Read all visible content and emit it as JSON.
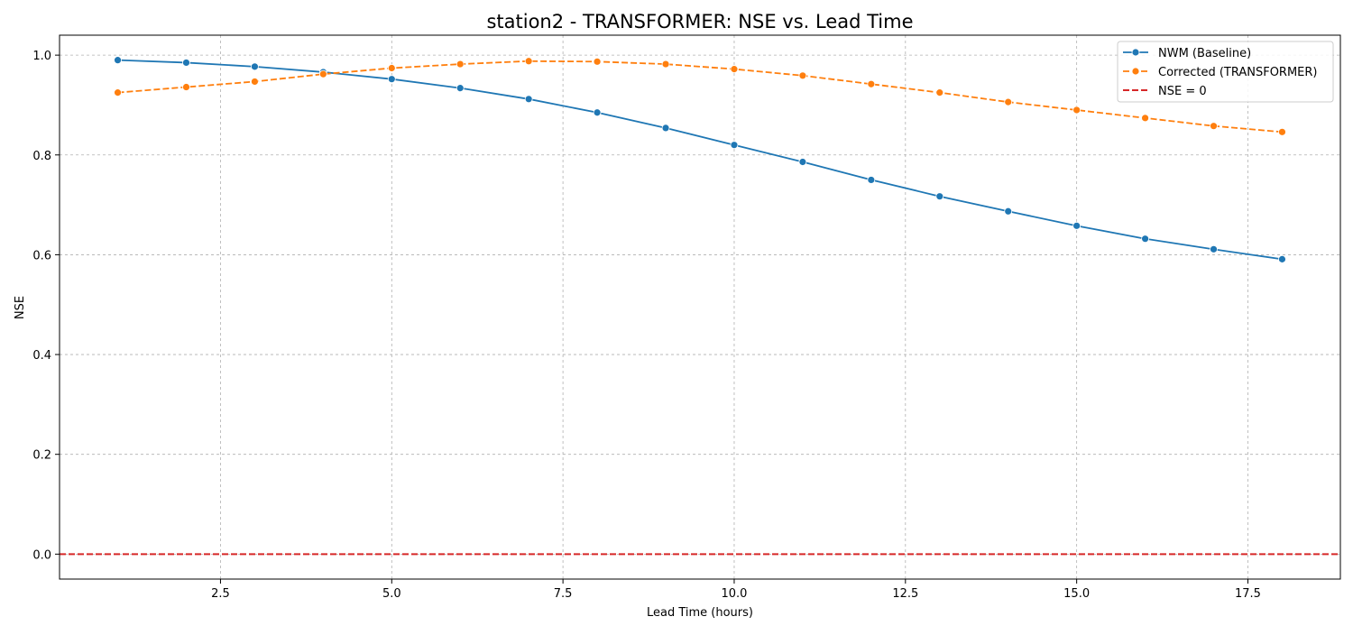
{
  "chart_data": {
    "type": "line",
    "title": "station2 - TRANSFORMER: NSE vs. Lead Time",
    "xlabel": "Lead Time (hours)",
    "ylabel": "NSE",
    "xlim": [
      0.15,
      18.85
    ],
    "ylim": [
      -0.05,
      1.04
    ],
    "x_ticks": [
      2.5,
      5.0,
      7.5,
      10.0,
      12.5,
      15.0,
      17.5
    ],
    "x_tick_labels": [
      "2.5",
      "5.0",
      "7.5",
      "10.0",
      "12.5",
      "15.0",
      "17.5"
    ],
    "y_ticks": [
      0.0,
      0.2,
      0.4,
      0.6,
      0.8,
      1.0
    ],
    "y_tick_labels": [
      "0.0",
      "0.2",
      "0.4",
      "0.6",
      "0.8",
      "1.0"
    ],
    "grid": true,
    "legend_position": "top-right",
    "x": [
      1,
      2,
      3,
      4,
      5,
      6,
      7,
      8,
      9,
      10,
      11,
      12,
      13,
      14,
      15,
      16,
      17,
      18
    ],
    "series": [
      {
        "name": "NWM (Baseline)",
        "color": "#1f77b4",
        "style": "solid",
        "marker": "circle",
        "values": [
          0.99,
          0.985,
          0.977,
          0.966,
          0.952,
          0.934,
          0.912,
          0.885,
          0.854,
          0.82,
          0.786,
          0.75,
          0.717,
          0.687,
          0.658,
          0.632,
          0.611,
          0.591
        ]
      },
      {
        "name": "Corrected (TRANSFORMER)",
        "color": "#ff7f0e",
        "style": "dashed",
        "marker": "circle",
        "values": [
          0.925,
          0.936,
          0.947,
          0.962,
          0.974,
          0.982,
          0.988,
          0.987,
          0.982,
          0.972,
          0.959,
          0.942,
          0.925,
          0.906,
          0.89,
          0.874,
          0.858,
          0.846
        ]
      }
    ],
    "reference_lines": [
      {
        "name": "NSE = 0",
        "y": 0.0,
        "color": "#d62728",
        "style": "dashed"
      }
    ]
  }
}
